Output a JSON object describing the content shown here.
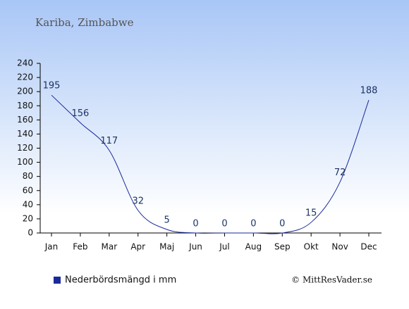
{
  "chart_data": {
    "type": "line",
    "title": "Kariba, Zimbabwe",
    "categories": [
      "Jan",
      "Feb",
      "Mar",
      "Apr",
      "Maj",
      "Jun",
      "Jul",
      "Aug",
      "Sep",
      "Okt",
      "Nov",
      "Dec"
    ],
    "series": [
      {
        "name": "Nederbördsmängd i mm",
        "color": "#1a2a9c",
        "values": [
          195,
          156,
          117,
          32,
          5,
          0,
          0,
          0,
          0,
          15,
          72,
          188
        ]
      }
    ],
    "ylim": [
      0,
      240
    ],
    "yticks": [
      0,
      20,
      40,
      60,
      80,
      100,
      120,
      140,
      160,
      180,
      200,
      220,
      240
    ],
    "credit": "© MittResVader.se"
  }
}
